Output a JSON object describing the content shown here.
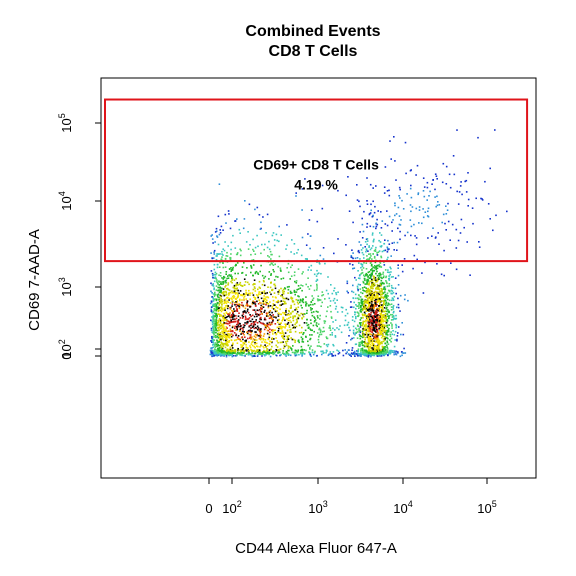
{
  "chart_data": {
    "type": "scatter",
    "title_line1": "Combined Events",
    "title_line2": "CD8 T Cells",
    "xlabel": "CD44 Alexa Fluor 647-A",
    "ylabel": "CD69 7-AAD-A",
    "x_scale": "biexponential (logicle)",
    "y_scale": "biexponential (logicle)",
    "xlim": [
      -1000,
      300000
    ],
    "ylim": [
      -1000,
      300000
    ],
    "grid": false,
    "x_ticks": [
      {
        "value": 0,
        "base": "0",
        "exp": ""
      },
      {
        "value": 100,
        "base": "10",
        "exp": "2"
      },
      {
        "value": 1000,
        "base": "10",
        "exp": "3"
      },
      {
        "value": 10000,
        "base": "10",
        "exp": "4"
      },
      {
        "value": 100000,
        "base": "10",
        "exp": "5"
      }
    ],
    "y_ticks": [
      {
        "value": 0,
        "base": "0",
        "exp": ""
      },
      {
        "value": 100,
        "base": "10",
        "exp": "2"
      },
      {
        "value": 1000,
        "base": "10",
        "exp": "3"
      },
      {
        "value": 10000,
        "base": "10",
        "exp": "4"
      },
      {
        "value": 100000,
        "base": "10",
        "exp": "5"
      }
    ],
    "density_colors": [
      "#1533cc",
      "#2f8fd8",
      "#3cc7c0",
      "#4fd46a",
      "#21b82a",
      "#c8d400",
      "#f2e200",
      "#f6a000",
      "#d2201a",
      "#000000"
    ],
    "gate": {
      "label": "CD69+ CD8 T Cells",
      "percent": "4.19 %",
      "color": "#e0141a",
      "x_range": [
        -1000,
        300000
      ],
      "y_range": [
        2000,
        200000
      ]
    },
    "populations": [
      {
        "name": "",
        "x_center": 150,
        "y_center": 300,
        "x_spread_decades": 0.55,
        "y_spread_decades": 0.55,
        "share": 0.55
      },
      {
        "name": "",
        "x_center": 4500,
        "y_center": 300,
        "x_spread_decades": 0.12,
        "y_spread_decades": 0.55,
        "share": 0.4
      },
      {
        "name": "",
        "x_center": 15000,
        "y_center": 8000,
        "x_spread_decades": 0.45,
        "y_spread_decades": 0.35,
        "share": 0.05
      }
    ]
  }
}
